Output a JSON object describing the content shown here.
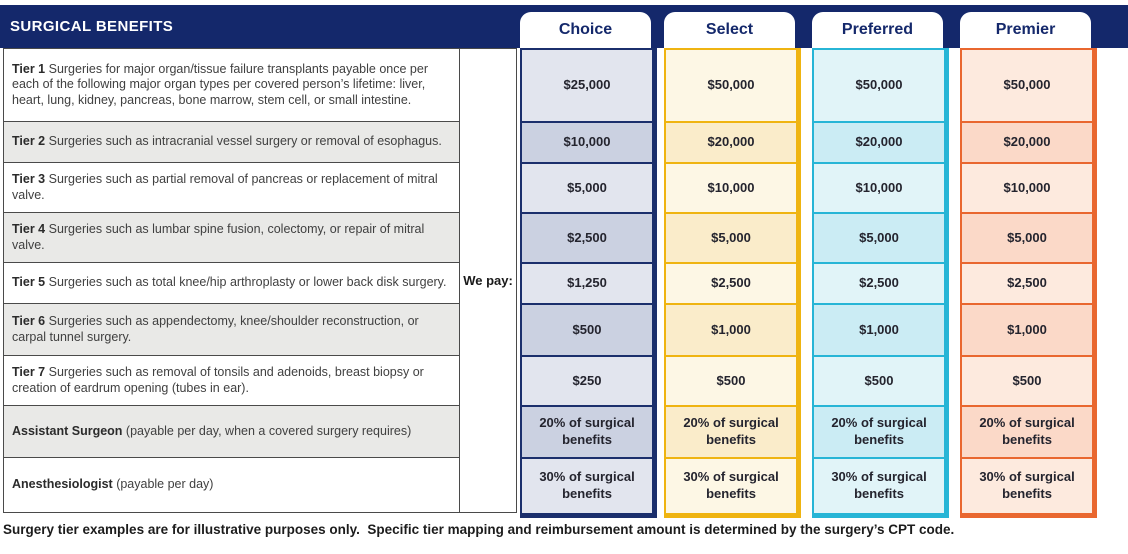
{
  "title": "SURGICAL BENEFITS",
  "we_pay_label": "We pay:",
  "footer": "Surgery tier examples are for illustrative purposes only.  Specific tier mapping and reimbursement amount is determined by the surgery’s CPT code.",
  "colors": {
    "header_navy": "#14286b",
    "description_shaded": "#e9e9e7",
    "table_border": "#4a4a4a"
  },
  "rows": [
    {
      "id": "tier-1",
      "bold": "Tier 1",
      "rest": "Surgeries for major organ/tissue failure transplants payable once per each of the following major organ types per covered person’s lifetime: liver, heart, lung, kidney, pancreas, bone marrow, stem cell, or small intestine."
    },
    {
      "id": "tier-2",
      "bold": "Tier 2",
      "rest": "Surgeries such as intracranial vessel surgery or removal of esophagus."
    },
    {
      "id": "tier-3",
      "bold": "Tier 3",
      "rest": "Surgeries such as partial removal of pancreas or replacement of mitral valve."
    },
    {
      "id": "tier-4",
      "bold": "Tier 4",
      "rest": "Surgeries such as lumbar spine fusion, colectomy, or repair of mitral valve."
    },
    {
      "id": "tier-5",
      "bold": "Tier 5",
      "rest": "Surgeries such as total knee/hip arthroplasty or lower back disk surgery."
    },
    {
      "id": "tier-6",
      "bold": "Tier 6",
      "rest": "Surgeries such as appendectomy, knee/shoulder reconstruction, or carpal tunnel surgery."
    },
    {
      "id": "tier-7",
      "bold": "Tier 7",
      "rest": "Surgeries such as removal of tonsils and adenoids, breast biopsy or creation of eardrum opening (tubes in ear)."
    },
    {
      "id": "assistant-surgeon",
      "bold": "Assistant Surgeon",
      "rest": "(payable per day, when a covered surgery requires)"
    },
    {
      "id": "anesthesiologist",
      "bold": "Anesthesiologist",
      "rest": "(payable per day)"
    }
  ],
  "plans": [
    {
      "label": "Choice",
      "accent": "#1b2f6c",
      "cell_light": "#e2e5ee",
      "cell_dark": "#cbd1e1",
      "values": [
        "$25,000",
        "$10,000",
        "$5,000",
        "$2,500",
        "$1,250",
        "$500",
        "$250",
        "20% of surgical benefits",
        "30% of surgical benefits"
      ]
    },
    {
      "label": "Select",
      "accent": "#efb411",
      "cell_light": "#fdf7e5",
      "cell_dark": "#faecca",
      "values": [
        "$50,000",
        "$20,000",
        "$10,000",
        "$5,000",
        "$2,500",
        "$1,000",
        "$500",
        "20% of surgical benefits",
        "30% of surgical benefits"
      ]
    },
    {
      "label": "Preferred",
      "accent": "#27b5d6",
      "cell_light": "#e1f4f8",
      "cell_dark": "#cbecf4",
      "values": [
        "$50,000",
        "$20,000",
        "$10,000",
        "$5,000",
        "$2,500",
        "$1,000",
        "$500",
        "20% of surgical benefits",
        "30% of surgical benefits"
      ]
    },
    {
      "label": "Premier",
      "accent": "#e9672f",
      "cell_light": "#fdeade",
      "cell_dark": "#fbd9c8",
      "values": [
        "$50,000",
        "$20,000",
        "$10,000",
        "$5,000",
        "$2,500",
        "$1,000",
        "$500",
        "20% of surgical benefits",
        "30% of surgical benefits"
      ]
    }
  ]
}
